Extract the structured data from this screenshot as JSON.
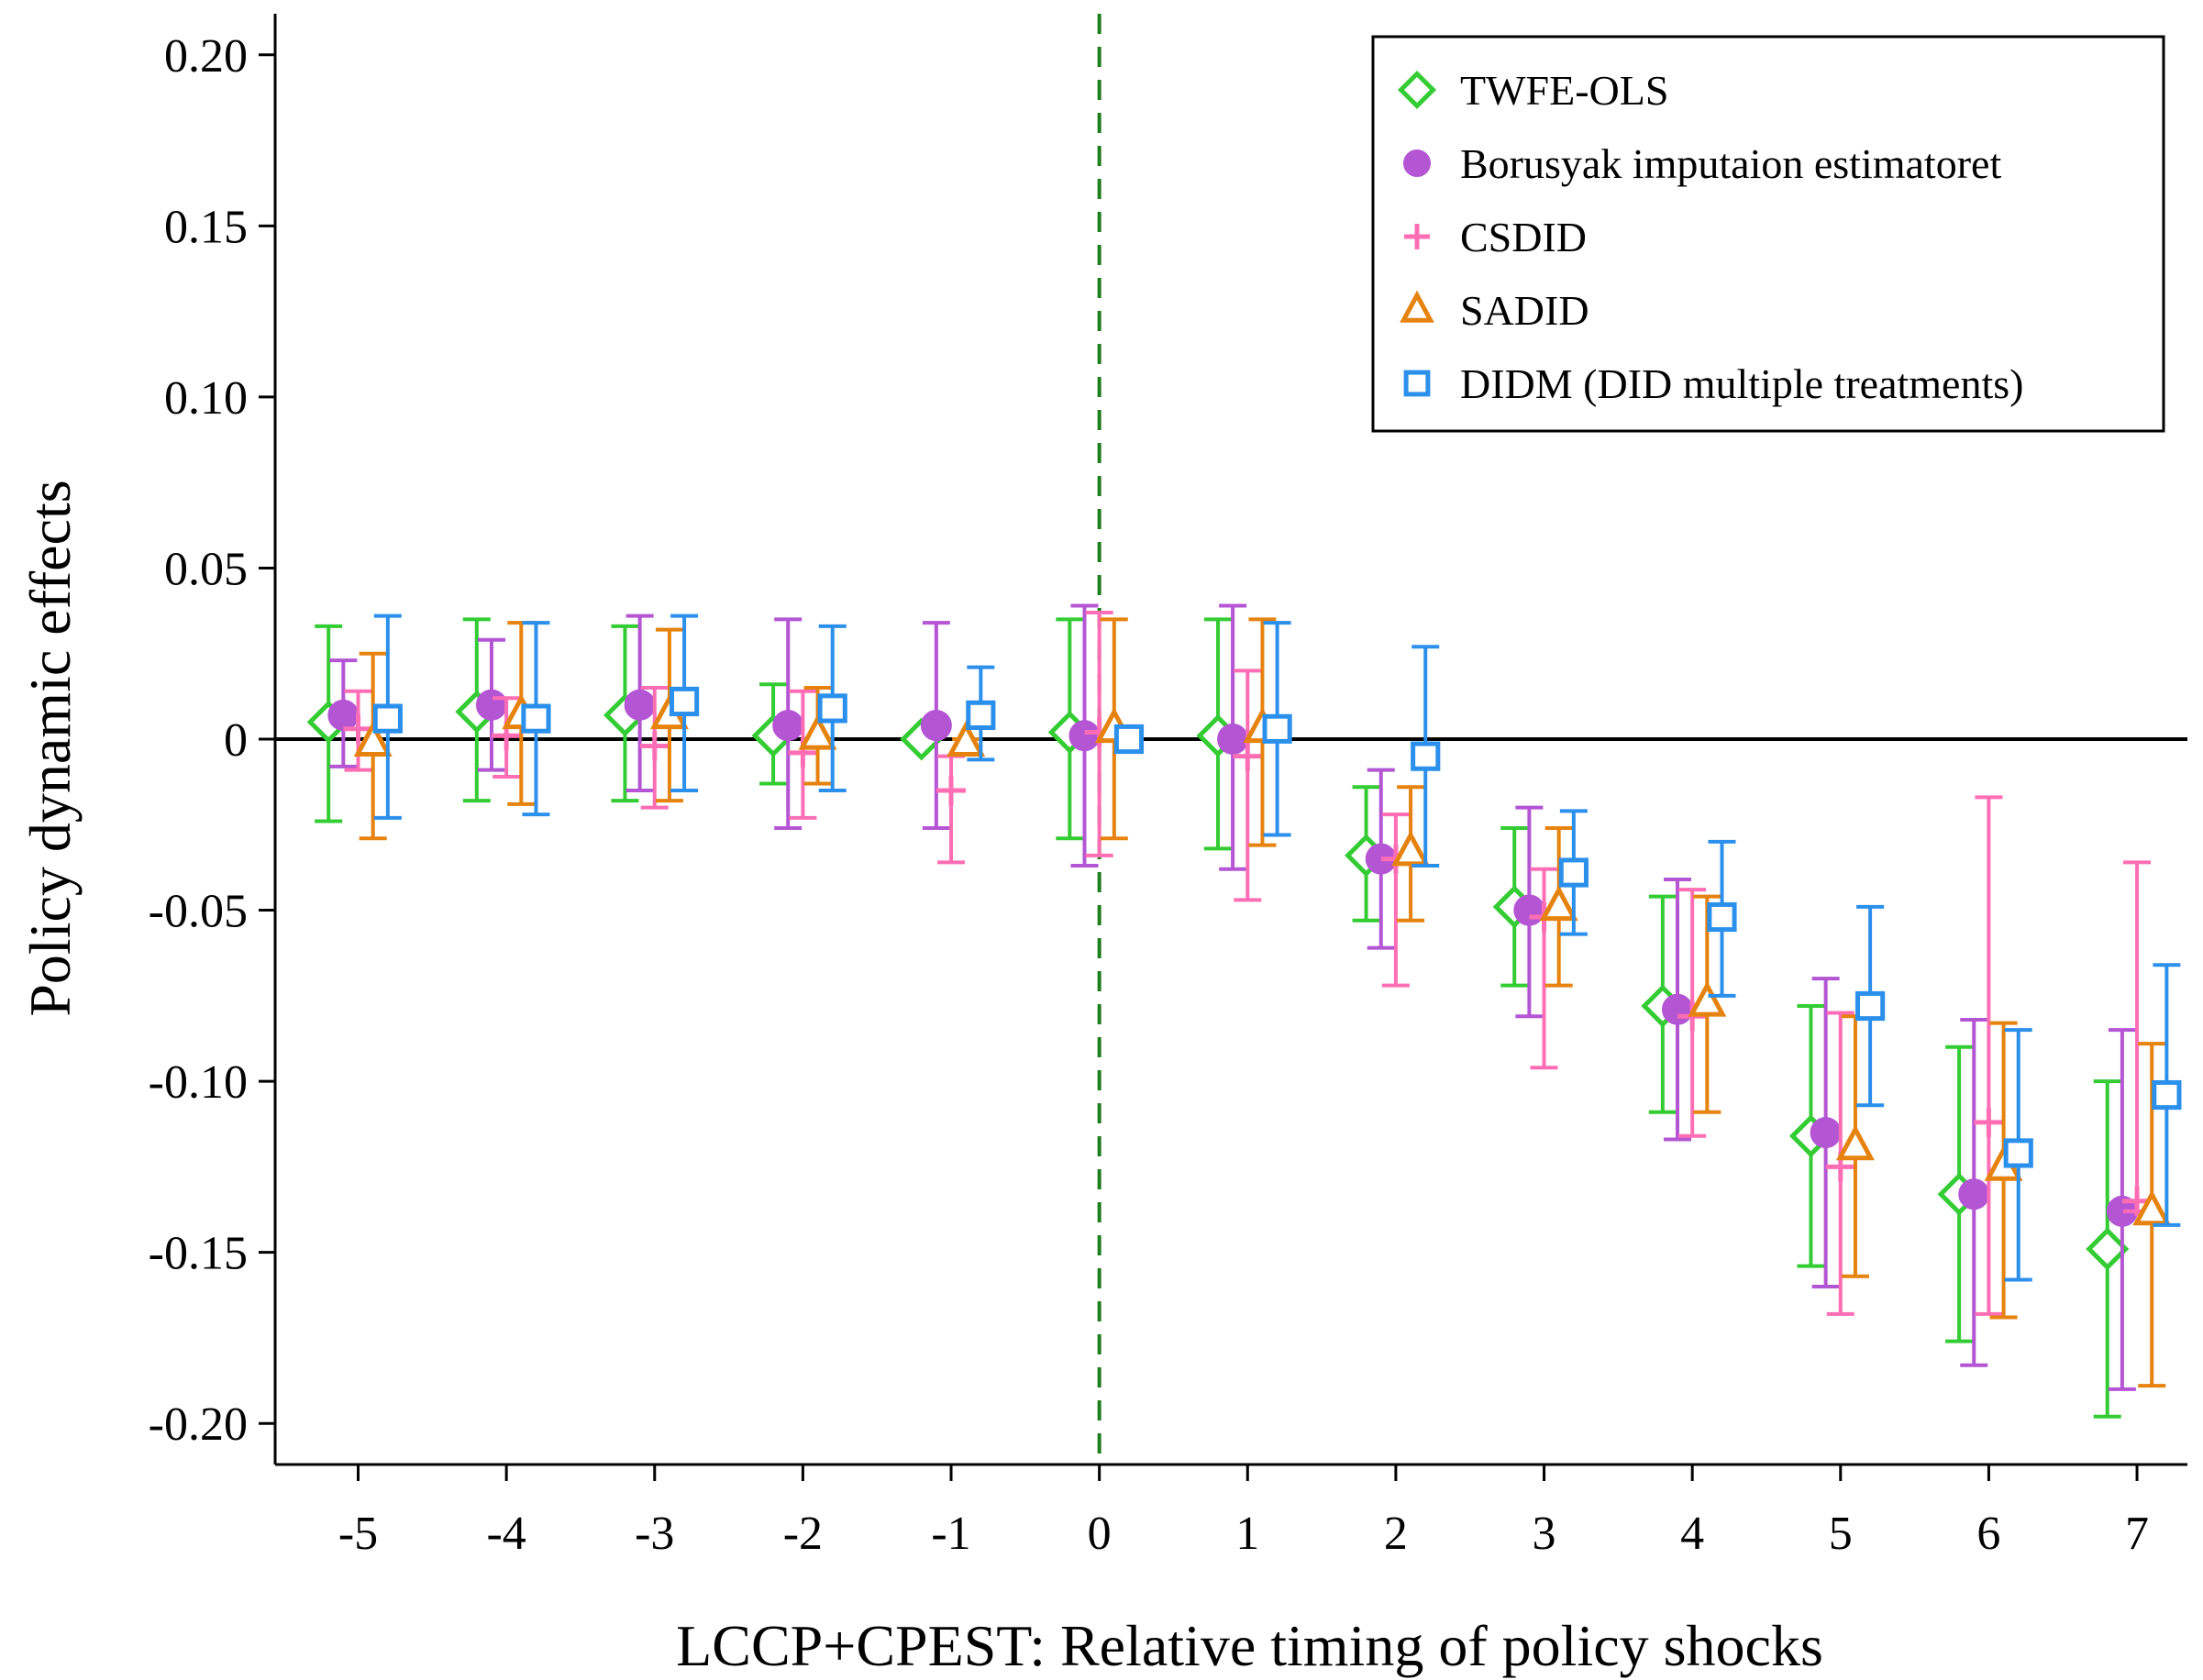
{
  "chart_data": {
    "type": "scatter",
    "subtype": "event-study coefficient plot with confidence intervals",
    "xlabel": "LCCP+CPEST: Relative timing of policy shocks",
    "ylabel": "Policy dynamic effects",
    "x_categories": [
      -5,
      -4,
      -3,
      -2,
      -1,
      0,
      1,
      2,
      3,
      4,
      5,
      6,
      7
    ],
    "x_tick_labels": [
      "-5",
      "-4",
      "-3",
      "-2",
      "-1",
      "0",
      "1",
      "2",
      "3",
      "4",
      "5",
      "6",
      "7"
    ],
    "ylim": [
      -0.212,
      0.212
    ],
    "y_ticks": [
      0.2,
      0.15,
      0.1,
      0.05,
      0,
      -0.05,
      -0.1,
      -0.15,
      -0.2
    ],
    "y_tick_labels": [
      "0.20",
      "0.15",
      "0.10",
      "0.05",
      "0",
      "-0.05",
      "-0.10",
      "-0.15",
      "-0.20"
    ],
    "zero_line": 0,
    "vertical_reference": {
      "x": 0,
      "style": "dashed",
      "color": "#1e7e1e"
    },
    "legend_position": "top-right",
    "series": [
      {
        "name": "TWFE-OLS",
        "marker": "diamond",
        "color": "#33cc33",
        "offset": -0.2,
        "estimates": [
          0.005,
          0.008,
          0.007,
          0.001,
          0.0,
          0.002,
          0.001,
          -0.034,
          -0.049,
          -0.078,
          -0.116,
          -0.133,
          -0.149
        ],
        "ci_lower": [
          -0.024,
          -0.018,
          -0.018,
          -0.013,
          0.0,
          -0.029,
          -0.032,
          -0.053,
          -0.072,
          -0.109,
          -0.154,
          -0.176,
          -0.198
        ],
        "ci_upper": [
          0.033,
          0.035,
          0.033,
          0.016,
          0.0,
          0.035,
          0.035,
          -0.014,
          -0.026,
          -0.046,
          -0.078,
          -0.09,
          -0.1
        ]
      },
      {
        "name": "Borusyak imputaion estimatoret",
        "marker": "circle",
        "color": "#b455d4",
        "offset": -0.1,
        "estimates": [
          0.007,
          0.01,
          0.01,
          0.004,
          0.004,
          0.001,
          0.0,
          -0.035,
          -0.05,
          -0.079,
          -0.115,
          -0.133,
          -0.138
        ],
        "ci_lower": [
          -0.008,
          -0.009,
          -0.015,
          -0.026,
          -0.026,
          -0.037,
          -0.038,
          -0.061,
          -0.081,
          -0.117,
          -0.16,
          -0.183,
          -0.19
        ],
        "ci_upper": [
          0.023,
          0.029,
          0.036,
          0.035,
          0.034,
          0.039,
          0.039,
          -0.009,
          -0.02,
          -0.041,
          -0.07,
          -0.082,
          -0.085
        ]
      },
      {
        "name": "CSDID",
        "marker": "plus",
        "color": "#ff6eb4",
        "offset": 0.0,
        "estimates": [
          0.003,
          0.001,
          -0.002,
          -0.004,
          -0.015,
          0.002,
          -0.005,
          -0.035,
          -0.052,
          -0.081,
          -0.125,
          -0.112,
          -0.135
        ],
        "ci_lower": [
          -0.009,
          -0.011,
          -0.02,
          -0.023,
          -0.036,
          -0.034,
          -0.047,
          -0.072,
          -0.096,
          -0.116,
          -0.168,
          -0.168,
          -0.138
        ],
        "ci_upper": [
          0.014,
          0.012,
          0.015,
          0.014,
          -0.005,
          0.037,
          0.02,
          -0.022,
          -0.038,
          -0.044,
          -0.08,
          -0.017,
          -0.036
        ]
      },
      {
        "name": "SADID",
        "marker": "triangle",
        "color": "#e6820e",
        "offset": 0.1,
        "estimates": [
          -0.001,
          0.007,
          0.007,
          0.001,
          -0.001,
          0.003,
          0.003,
          -0.033,
          -0.049,
          -0.077,
          -0.119,
          -0.125,
          -0.138
        ],
        "ci_lower": [
          -0.029,
          -0.019,
          -0.018,
          -0.013,
          -0.003,
          -0.029,
          -0.031,
          -0.053,
          -0.072,
          -0.109,
          -0.157,
          -0.169,
          -0.189
        ],
        "ci_upper": [
          0.025,
          0.034,
          0.032,
          0.015,
          0.0,
          0.035,
          0.035,
          -0.014,
          -0.026,
          -0.046,
          -0.081,
          -0.083,
          -0.089
        ]
      },
      {
        "name": "DIDM (DID multiple treatments)",
        "marker": "square",
        "color": "#2b8fec",
        "offset": 0.2,
        "estimates": [
          0.006,
          0.006,
          0.011,
          0.009,
          0.007,
          0.0,
          0.003,
          -0.005,
          -0.039,
          -0.052,
          -0.078,
          -0.121,
          -0.104
        ],
        "ci_lower": [
          -0.023,
          -0.022,
          -0.015,
          -0.015,
          -0.006,
          0.0,
          -0.028,
          -0.037,
          -0.057,
          -0.075,
          -0.107,
          -0.158,
          -0.142
        ],
        "ci_upper": [
          0.036,
          0.034,
          0.036,
          0.033,
          0.021,
          0.0,
          0.034,
          0.027,
          -0.021,
          -0.03,
          -0.049,
          -0.085,
          -0.066
        ]
      }
    ]
  }
}
